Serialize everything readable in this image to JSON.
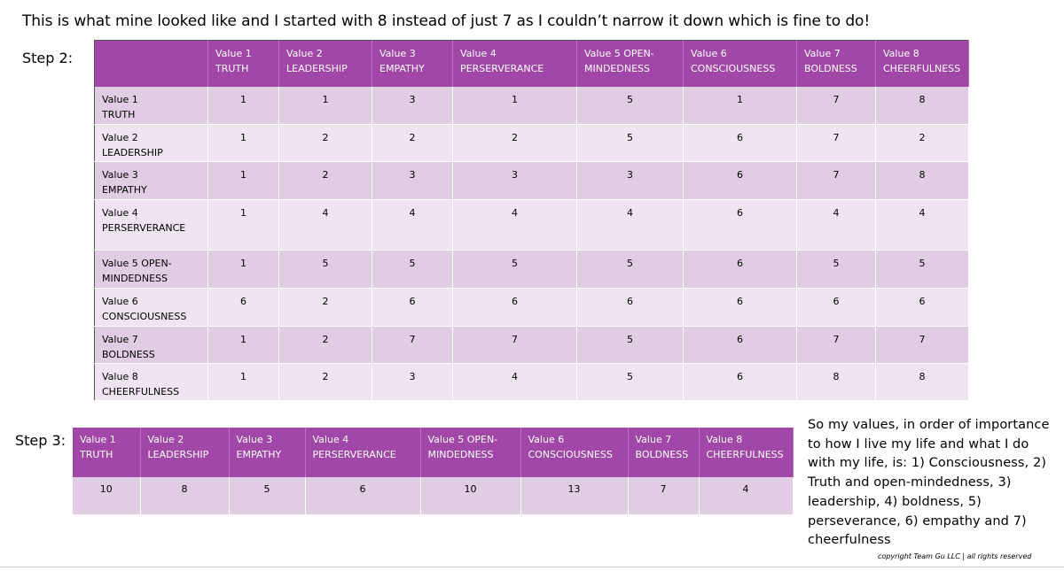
{
  "intro_text": "This is what mine looked like and I started with 8 instead of just 7 as I couldn’t narrow it down which is fine to do!",
  "step2": {
    "label": "Step 2:",
    "columns": [
      {
        "l1": "Value 1",
        "l2": "TRUTH"
      },
      {
        "l1": "Value 2",
        "l2": "LEADERSHIP"
      },
      {
        "l1": "Value 3",
        "l2": "EMPATHY"
      },
      {
        "l1": "Value 4",
        "l2": "PERSERVERANCE"
      },
      {
        "l1": "Value 5 OPEN-",
        "l2": "MINDEDNESS"
      },
      {
        "l1": "Value 6",
        "l2": "CONSCIOUSNESS"
      },
      {
        "l1": "Value 7",
        "l2": "BOLDNESS"
      },
      {
        "l1": "Value 8",
        "l2": "CHEERFULNESS"
      }
    ],
    "rows": [
      {
        "l1": "Value 1",
        "l2": "TRUTH",
        "cells": [
          "1",
          "1",
          "3",
          "1",
          "5",
          "1",
          "7",
          "8"
        ]
      },
      {
        "l1": "Value 2",
        "l2": "LEADERSHIP",
        "cells": [
          "1",
          "2",
          "2",
          "2",
          "5",
          "6",
          "7",
          "2"
        ]
      },
      {
        "l1": "Value 3",
        "l2": "EMPATHY",
        "cells": [
          "1",
          "2",
          "3",
          "3",
          "3",
          "6",
          "7",
          "8"
        ]
      },
      {
        "l1": "Value 4",
        "l2": "PERSERVERANCE",
        "cells": [
          "1",
          "4",
          "4",
          "4",
          "4",
          "6",
          "4",
          "4"
        ]
      },
      {
        "l1": "Value 5 OPEN-",
        "l2": "MINDEDNESS",
        "cells": [
          "1",
          "5",
          "5",
          "5",
          "5",
          "6",
          "5",
          "5"
        ]
      },
      {
        "l1": "Value 6",
        "l2": "CONSCIOUSNESS",
        "cells": [
          "6",
          "2",
          "6",
          "6",
          "6",
          "6",
          "6",
          "6"
        ]
      },
      {
        "l1": "Value 7",
        "l2": "BOLDNESS",
        "cells": [
          "1",
          "2",
          "7",
          "7",
          "5",
          "6",
          "7",
          "7"
        ]
      },
      {
        "l1": "Value 8",
        "l2": "CHEERFULNESS",
        "cells": [
          "1",
          "2",
          "3",
          "4",
          "5",
          "6",
          "8",
          "8"
        ]
      }
    ]
  },
  "step3": {
    "label": "Step 3:",
    "columns": [
      {
        "l1": "Value 1",
        "l2": "TRUTH"
      },
      {
        "l1": "Value 2",
        "l2": "LEADERSHIP"
      },
      {
        "l1": "Value 3",
        "l2": "EMPATHY"
      },
      {
        "l1": "Value 4",
        "l2": "PERSERVERANCE"
      },
      {
        "l1": "Value 5 OPEN-",
        "l2": "MINDEDNESS"
      },
      {
        "l1": "Value 6",
        "l2": "CONSCIOUSNESS"
      },
      {
        "l1": "Value 7",
        "l2": "BOLDNESS"
      },
      {
        "l1": "Value 8",
        "l2": "CHEERFULNESS"
      }
    ],
    "totals": [
      "10",
      "8",
      "5",
      "6",
      "10",
      "13",
      "7",
      "4"
    ]
  },
  "summary_text": "So my values, in order of importance to how I live my life and what I do with my life, is: 1) Consciousness, 2) Truth and open-mindedness, 3) leadership, 4) boldness, 5) perseverance, 6) empathy and 7) cheerfulness",
  "copyright": "copyright Team Gu LLC | all rights reserved",
  "colors": {
    "header_purple": "#a047a7",
    "row_dark": "#e1cde3",
    "row_light": "#efe5f0"
  }
}
